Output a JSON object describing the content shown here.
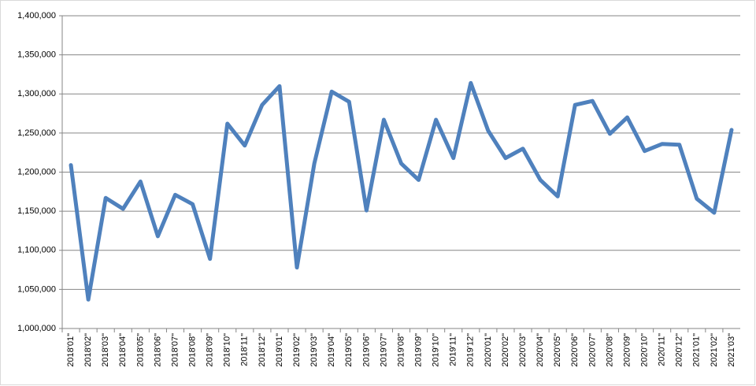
{
  "chart_data": {
    "type": "line",
    "categories": [
      "2018'01\"",
      "2018'02\"",
      "2018'03\"",
      "2018'04\"",
      "2018'05\"",
      "2018'06\"",
      "2018'07\"",
      "2018'08\"",
      "2018'09\"",
      "2018'10\"",
      "2018'11\"",
      "2018'12\"",
      "2019'01\"",
      "2019'02\"",
      "2019'03\"",
      "2019'04\"",
      "2019'05\"",
      "2019'06\"",
      "2019'07\"",
      "2019'08\"",
      "2019'09\"",
      "2019'10\"",
      "2019'11\"",
      "2019'12\"",
      "2020'01\"",
      "2020'02\"",
      "2020'03\"",
      "2020'04\"",
      "2020'05\"",
      "2020'06\"",
      "2020'07\"",
      "2020'08\"",
      "2020'09\"",
      "2020'10\"",
      "2020'11\"",
      "2020'12\"",
      "2021'01\"",
      "2021'02\"",
      "2021'03\""
    ],
    "values": [
      1209000,
      1037000,
      1167000,
      1153000,
      1188000,
      1118000,
      1171000,
      1159000,
      1089000,
      1262000,
      1234000,
      1286000,
      1310000,
      1078000,
      1211000,
      1303000,
      1290000,
      1151000,
      1267000,
      1211000,
      1190000,
      1267000,
      1218000,
      1314000,
      1253000,
      1218000,
      1230000,
      1190000,
      1169000,
      1286000,
      1291000,
      1249000,
      1270000,
      1227000,
      1236000,
      1235000,
      1166000,
      1148000,
      1254000
    ],
    "color": "#4f81bd",
    "ylim": [
      1000000,
      1400000
    ],
    "yticks": [
      {
        "value": 1000000,
        "label": "1,000,000"
      },
      {
        "value": 1050000,
        "label": "1,050,000"
      },
      {
        "value": 1100000,
        "label": "1,100,000"
      },
      {
        "value": 1150000,
        "label": "1,150,000"
      },
      {
        "value": 1200000,
        "label": "1,200,000"
      },
      {
        "value": 1250000,
        "label": "1,250,000"
      },
      {
        "value": 1300000,
        "label": "1,300,000"
      },
      {
        "value": 1350000,
        "label": "1,350,000"
      },
      {
        "value": 1400000,
        "label": "1,400,000"
      }
    ],
    "grid": true
  }
}
